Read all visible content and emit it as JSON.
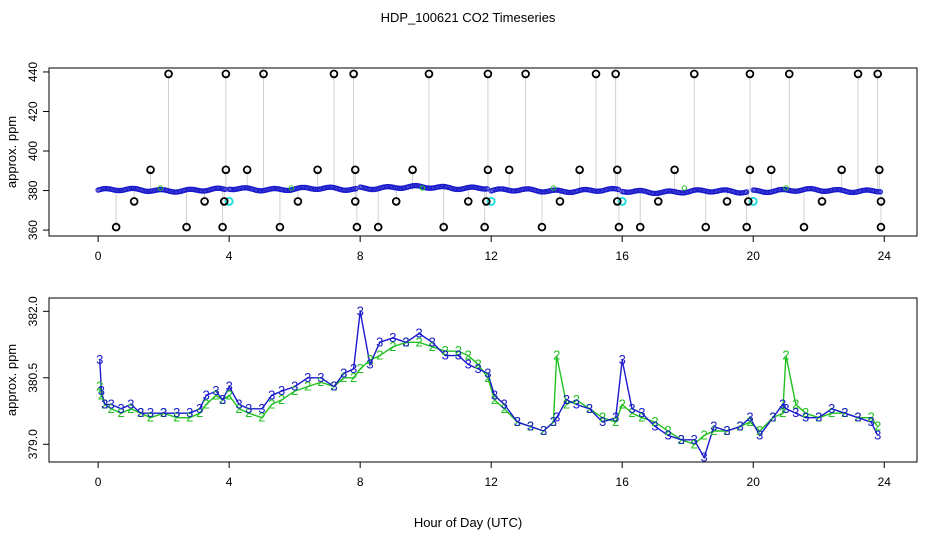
{
  "title": "HDP_100621  CO2 Timeseries",
  "colors": {
    "series2": "#22c022",
    "series3": "#1a1acc",
    "flag": "#000000",
    "cyan": "#22e0e0",
    "vline": "#9a9a9a"
  },
  "chart_data": [
    {
      "type": "scatter",
      "name": "top-panel",
      "xlabel": "",
      "ylabel": "approx. ppm",
      "xlim": [
        -1.5,
        25
      ],
      "ylim": [
        357,
        442
      ],
      "xticks": [
        "0",
        "4",
        "8",
        "12",
        "16",
        "20",
        "24"
      ],
      "yticks": [
        "360",
        "380",
        "400",
        "420",
        "440"
      ],
      "baseline_segments": [
        {
          "x0": 0.0,
          "x1": 3.9,
          "y": 380.2
        },
        {
          "x0": 4.0,
          "x1": 7.9,
          "y": 380.8
        },
        {
          "x0": 8.0,
          "x1": 11.9,
          "y": 381.5
        },
        {
          "x0": 12.0,
          "x1": 15.9,
          "y": 380.0
        },
        {
          "x0": 16.0,
          "x1": 19.8,
          "y": 379.5
        },
        {
          "x0": 20.0,
          "x1": 23.9,
          "y": 380.0
        }
      ],
      "flags_high": [
        2.15,
        3.9,
        5.05,
        7.2,
        7.8,
        10.1,
        11.9,
        13.05,
        15.2,
        15.8,
        18.2,
        19.9,
        21.1,
        23.2,
        23.8
      ],
      "flags_low": [
        0.55,
        2.7,
        3.8,
        5.55,
        7.9,
        8.55,
        10.55,
        11.8,
        13.55,
        15.9,
        16.55,
        18.55,
        19.8,
        21.55,
        23.9
      ],
      "flags_mid_high": [
        1.6,
        3.9,
        4.55,
        6.7,
        7.85,
        9.6,
        11.9,
        12.55,
        14.7,
        15.85,
        17.6,
        19.9,
        20.55,
        22.7,
        23.85
      ],
      "flags_mid_low": [
        1.1,
        3.25,
        3.85,
        6.1,
        7.85,
        9.1,
        11.3,
        11.85,
        14.1,
        15.85,
        17.1,
        19.2,
        19.85,
        22.1,
        23.9
      ],
      "cyan_points": [
        4.0,
        12.0,
        16.0,
        20.0
      ]
    },
    {
      "type": "line",
      "name": "bottom-panel",
      "xlabel": "Hour of Day (UTC)",
      "ylabel": "approx. ppm",
      "xlim": [
        -1.5,
        25
      ],
      "ylim": [
        378.6,
        382.3
      ],
      "xticks": [
        "0",
        "4",
        "8",
        "12",
        "16",
        "20",
        "24"
      ],
      "yticks": [
        "379.0",
        "380.5",
        "382.0"
      ],
      "series": [
        {
          "name": "2",
          "x": [
            0.05,
            0.1,
            0.2,
            0.4,
            0.7,
            1.0,
            1.3,
            1.6,
            2.0,
            2.4,
            2.8,
            3.1,
            3.3,
            3.6,
            3.8,
            4.0,
            4.3,
            4.6,
            5.0,
            5.3,
            5.6,
            6.0,
            6.4,
            6.8,
            7.2,
            7.5,
            7.8,
            8.0,
            8.3,
            8.6,
            9.0,
            9.4,
            9.8,
            10.2,
            10.6,
            11.0,
            11.3,
            11.6,
            11.9,
            12.1,
            12.4,
            12.8,
            13.2,
            13.6,
            13.9,
            14.0,
            14.3,
            14.6,
            15.0,
            15.4,
            15.8,
            16.0,
            16.3,
            16.6,
            17.0,
            17.4,
            17.8,
            18.2,
            18.5,
            18.8,
            19.2,
            19.6,
            19.9,
            20.2,
            20.6,
            20.9,
            21.0,
            21.3,
            21.6,
            22.0,
            22.4,
            22.8,
            23.2,
            23.6,
            23.8
          ],
          "y": [
            380.3,
            380.1,
            379.9,
            379.8,
            379.7,
            379.8,
            379.7,
            379.6,
            379.7,
            379.6,
            379.6,
            379.7,
            379.9,
            380.1,
            380.0,
            380.1,
            379.8,
            379.7,
            379.6,
            379.9,
            380.0,
            380.2,
            380.3,
            380.4,
            380.3,
            380.5,
            380.5,
            380.7,
            380.9,
            381.0,
            381.2,
            381.3,
            381.3,
            381.2,
            381.1,
            381.1,
            381.0,
            380.8,
            380.5,
            380.0,
            379.8,
            379.5,
            379.4,
            379.3,
            379.5,
            381.0,
            379.9,
            380.0,
            379.8,
            379.6,
            379.5,
            379.9,
            379.7,
            379.6,
            379.5,
            379.3,
            379.1,
            379.0,
            379.2,
            379.3,
            379.3,
            379.4,
            379.5,
            379.3,
            379.6,
            379.7,
            381.0,
            379.9,
            379.7,
            379.6,
            379.7,
            379.7,
            379.6,
            379.6,
            379.4
          ]
        },
        {
          "name": "3",
          "x": [
            0.05,
            0.1,
            0.2,
            0.4,
            0.7,
            1.0,
            1.3,
            1.6,
            2.0,
            2.4,
            2.8,
            3.1,
            3.3,
            3.6,
            3.8,
            4.0,
            4.3,
            4.6,
            5.0,
            5.3,
            5.6,
            6.0,
            6.4,
            6.8,
            7.2,
            7.5,
            7.8,
            8.0,
            8.3,
            8.6,
            9.0,
            9.4,
            9.8,
            10.2,
            10.6,
            11.0,
            11.3,
            11.6,
            11.9,
            12.1,
            12.4,
            12.8,
            13.2,
            13.6,
            13.9,
            14.0,
            14.3,
            14.6,
            15.0,
            15.4,
            15.8,
            16.0,
            16.3,
            16.6,
            17.0,
            17.4,
            17.8,
            18.2,
            18.5,
            18.8,
            19.2,
            19.6,
            19.9,
            20.2,
            20.6,
            20.9,
            21.0,
            21.3,
            21.6,
            22.0,
            22.4,
            22.8,
            23.2,
            23.6,
            23.8
          ],
          "y": [
            380.9,
            380.2,
            379.9,
            379.9,
            379.8,
            379.9,
            379.7,
            379.7,
            379.7,
            379.7,
            379.7,
            379.8,
            380.1,
            380.2,
            380.0,
            380.3,
            379.9,
            379.8,
            379.8,
            380.1,
            380.2,
            380.3,
            380.5,
            380.5,
            380.3,
            380.6,
            380.7,
            382.0,
            380.8,
            381.3,
            381.4,
            381.3,
            381.5,
            381.3,
            381.0,
            381.0,
            380.8,
            380.7,
            380.6,
            380.1,
            379.9,
            379.5,
            379.4,
            379.3,
            379.5,
            379.6,
            380.0,
            379.9,
            379.8,
            379.5,
            379.6,
            380.9,
            379.8,
            379.7,
            379.4,
            379.2,
            379.1,
            379.1,
            378.7,
            379.4,
            379.3,
            379.4,
            379.6,
            379.2,
            379.6,
            379.9,
            379.8,
            379.7,
            379.6,
            379.6,
            379.8,
            379.7,
            379.6,
            379.5,
            379.2
          ]
        }
      ]
    }
  ]
}
